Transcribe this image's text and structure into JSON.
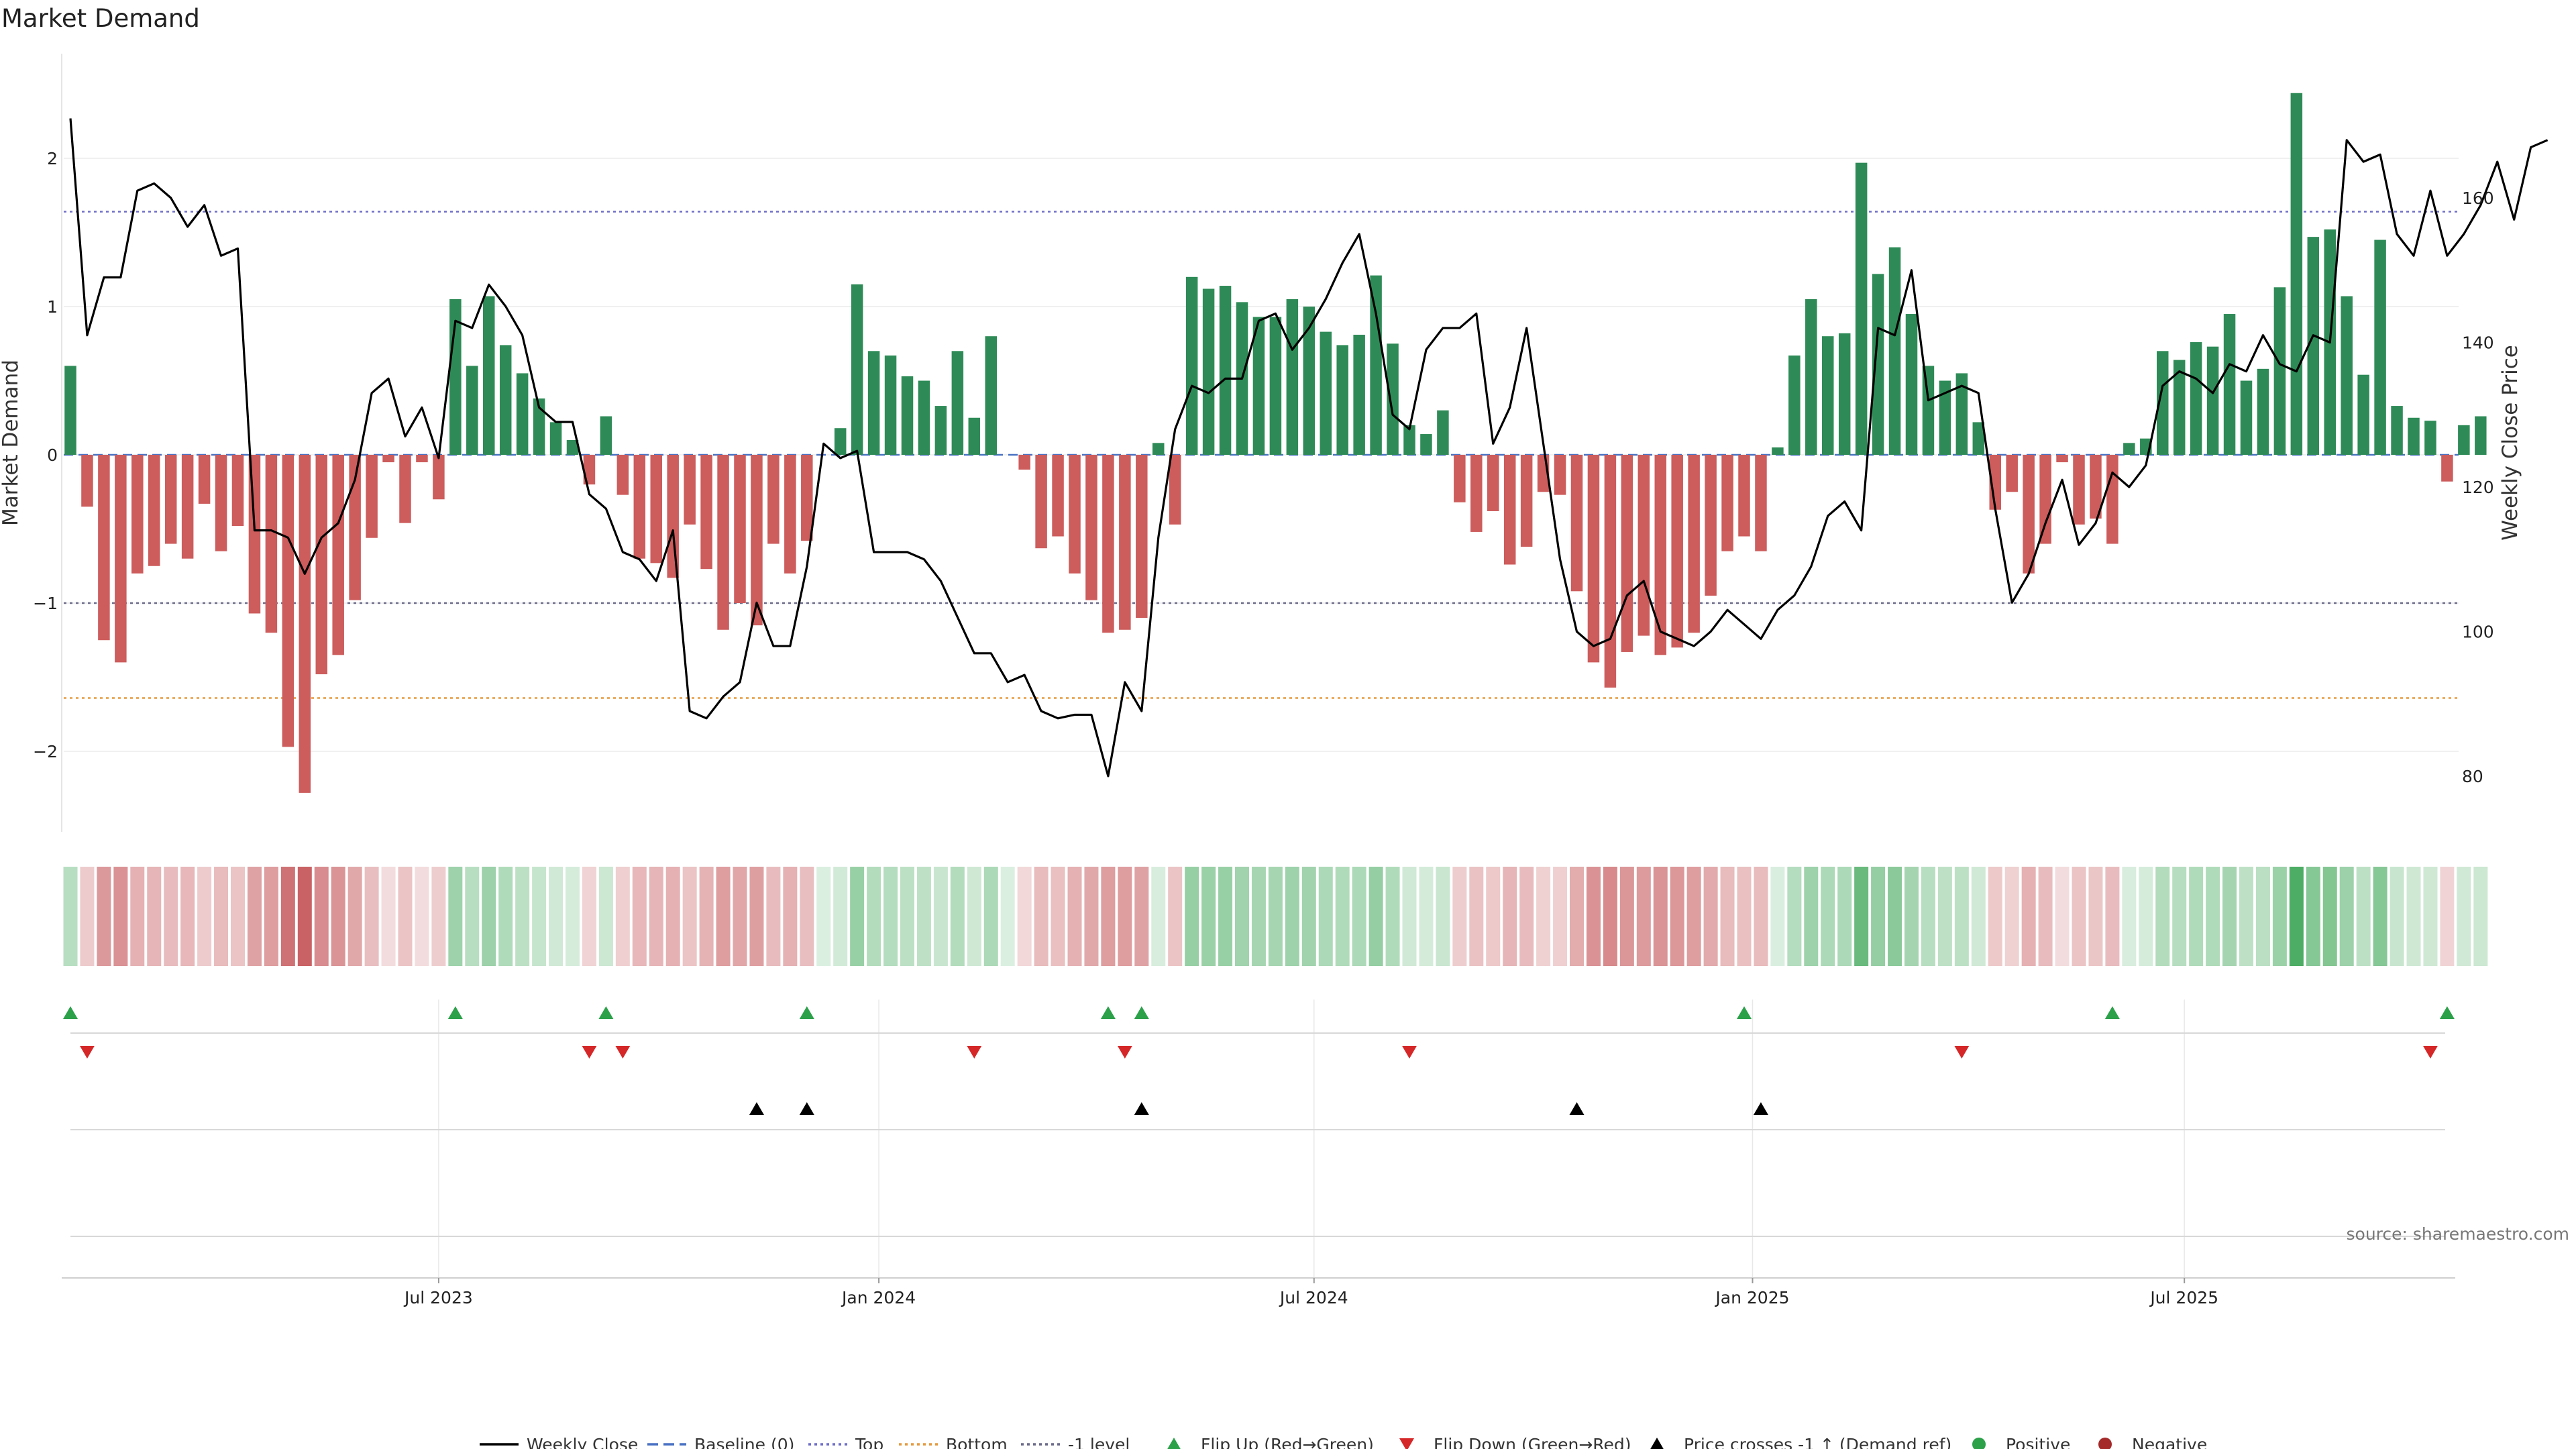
{
  "chart_data": {
    "type": "bar",
    "title": "Market Demand",
    "ylabel_left": "Market Demand",
    "ylabel_right": "Weekly Close Price",
    "xlabel": "",
    "ylim_left": [
      -2.55,
      2.55
    ],
    "ylim_right": [
      71,
      174
    ],
    "left_ticks": [
      {
        "v": 2,
        "label": "2"
      },
      {
        "v": 1,
        "label": "1"
      },
      {
        "v": 0,
        "label": "0"
      },
      {
        "v": -1,
        "label": "−1"
      },
      {
        "v": -2,
        "label": "−2"
      }
    ],
    "right_ticks": [
      160,
      140,
      120,
      100,
      80
    ],
    "x_ticks": [
      {
        "i": 22,
        "label": "Jul 2023"
      },
      {
        "i": 48.3,
        "label": "Jan 2024"
      },
      {
        "i": 74.3,
        "label": "Jul 2024"
      },
      {
        "i": 100.5,
        "label": "Jan 2025"
      },
      {
        "i": 126.3,
        "label": "Jul 2025"
      }
    ],
    "reference_lines": [
      {
        "name": "Baseline (0)",
        "value": 0,
        "color": "#4a72c4",
        "style": "dashed"
      },
      {
        "name": "Top",
        "value": 1.64,
        "color": "#6f6fc8",
        "style": "dotted"
      },
      {
        "name": "Bottom",
        "value": -1.64,
        "color": "#e69a3e",
        "style": "dotted"
      },
      {
        "name": "-1 level",
        "value": -1,
        "color": "#6b6b8a",
        "style": "dotted"
      }
    ],
    "series": [
      {
        "name": "Market Demand",
        "values": [
          0.6,
          -0.35,
          -1.25,
          -1.4,
          -0.8,
          -0.75,
          -0.6,
          -0.7,
          -0.33,
          -0.65,
          -0.48,
          -1.07,
          -1.2,
          -1.97,
          -2.28,
          -1.48,
          -1.35,
          -0.98,
          -0.56,
          -0.05,
          -0.46,
          -0.05,
          -0.3,
          1.05,
          0.6,
          1.07,
          0.74,
          0.55,
          0.38,
          0.22,
          0.1,
          -0.2,
          0.26,
          -0.27,
          -0.7,
          -0.73,
          -0.83,
          -0.47,
          -0.77,
          -1.18,
          -1.0,
          -1.15,
          -0.6,
          -0.8,
          -0.58,
          0.0,
          0.18,
          1.15,
          0.7,
          0.67,
          0.53,
          0.5,
          0.33,
          0.7,
          0.25,
          0.8,
          0.0,
          -0.1,
          -0.63,
          -0.55,
          -0.8,
          -0.98,
          -1.2,
          -1.18,
          -1.1,
          0.08,
          -0.47,
          1.2,
          1.12,
          1.14,
          1.03,
          0.93,
          0.93,
          1.05,
          1.0,
          0.83,
          0.74,
          0.81,
          1.21,
          0.75,
          0.2,
          0.14,
          0.3,
          -0.32,
          -0.52,
          -0.38,
          -0.74,
          -0.62,
          -0.25,
          -0.27,
          -0.92,
          -1.4,
          -1.57,
          -1.33,
          -1.22,
          -1.35,
          -1.3,
          -1.2,
          -0.95,
          -0.65,
          -0.55,
          -0.65,
          0.05,
          0.67,
          1.05,
          0.8,
          0.82,
          1.97,
          1.22,
          1.4,
          0.95,
          0.6,
          0.5,
          0.55,
          0.22,
          -0.37,
          -0.25,
          -0.8,
          -0.6,
          -0.05,
          -0.47,
          -0.43,
          -0.6,
          0.08,
          0.11,
          0.7,
          0.64,
          0.76,
          0.73,
          0.95,
          0.5,
          0.58,
          1.13,
          2.44,
          1.47,
          1.52,
          1.07,
          0.54,
          1.45,
          0.33,
          0.25,
          0.23,
          -0.18,
          0.2,
          0.26
        ]
      },
      {
        "name": "Weekly Close",
        "values": [
          171,
          141,
          149,
          149,
          161,
          162,
          160,
          156,
          159,
          152,
          153,
          114,
          114,
          113,
          108,
          113,
          115,
          121,
          133,
          135,
          127,
          131,
          124,
          143,
          142,
          148,
          145,
          141,
          131,
          129,
          129,
          119,
          117,
          111,
          110,
          107,
          114,
          89,
          88,
          91,
          93,
          104,
          98,
          98,
          109,
          126,
          124,
          125,
          111,
          111,
          111,
          110,
          107,
          102,
          97,
          97,
          93,
          94,
          89,
          88,
          88.5,
          88.5,
          80,
          93,
          89,
          113,
          128,
          134,
          133,
          135,
          135,
          143,
          144,
          139,
          142,
          146,
          151,
          155,
          144,
          130,
          128,
          139,
          142,
          142,
          144,
          126,
          131,
          142,
          126,
          110,
          100,
          98,
          99,
          105,
          107,
          100,
          99,
          98,
          100,
          103,
          101,
          99,
          103,
          105,
          109,
          116,
          118,
          114,
          142,
          141,
          150,
          132,
          133,
          134,
          133,
          117,
          104,
          108,
          115,
          121,
          112,
          115,
          122,
          120,
          123,
          134,
          136,
          135,
          133,
          137,
          136,
          141,
          137,
          136,
          141,
          140,
          168,
          165,
          166,
          155,
          152,
          161,
          152,
          155,
          159,
          165,
          157,
          167,
          168
        ]
      }
    ],
    "heat_strip_colors": {
      "positive": "#3aa453",
      "negative": "#c0464a"
    },
    "markers": {
      "flip_up": [
        0,
        23,
        32,
        44,
        62,
        64,
        100,
        122,
        142
      ],
      "flip_down": [
        1,
        31,
        33,
        54,
        63,
        80,
        113,
        141
      ],
      "price_crosses": [
        41,
        44,
        64,
        90,
        101
      ]
    },
    "legend": [
      {
        "label": "Weekly Close",
        "kind": "line",
        "color": "#000000"
      },
      {
        "label": "Baseline (0)",
        "kind": "dash",
        "color": "#4a72c4"
      },
      {
        "label": "Top",
        "kind": "dot",
        "color": "#6f6fc8"
      },
      {
        "label": "Bottom",
        "kind": "dot",
        "color": "#e69a3e"
      },
      {
        "label": "-1 level",
        "kind": "dot",
        "color": "#6b6b8a"
      },
      {
        "label": "Flip Up (Red→Green)",
        "kind": "tri-up",
        "color": "#2ca14a"
      },
      {
        "label": "Flip Down (Green→Red)",
        "kind": "tri-down",
        "color": "#d62728"
      },
      {
        "label": "Price crosses -1 ↑ (Demand ref)",
        "kind": "tri-up",
        "color": "#000000"
      },
      {
        "label": "Positive",
        "kind": "dot-marker",
        "color": "#2ca14a"
      },
      {
        "label": "Negative",
        "kind": "dot-marker",
        "color": "#a52a2a"
      }
    ],
    "source": "source: sharemaestro.com",
    "colors": {
      "positive_bar": "#2e8b57",
      "negative_bar": "#cd5c5c"
    }
  }
}
